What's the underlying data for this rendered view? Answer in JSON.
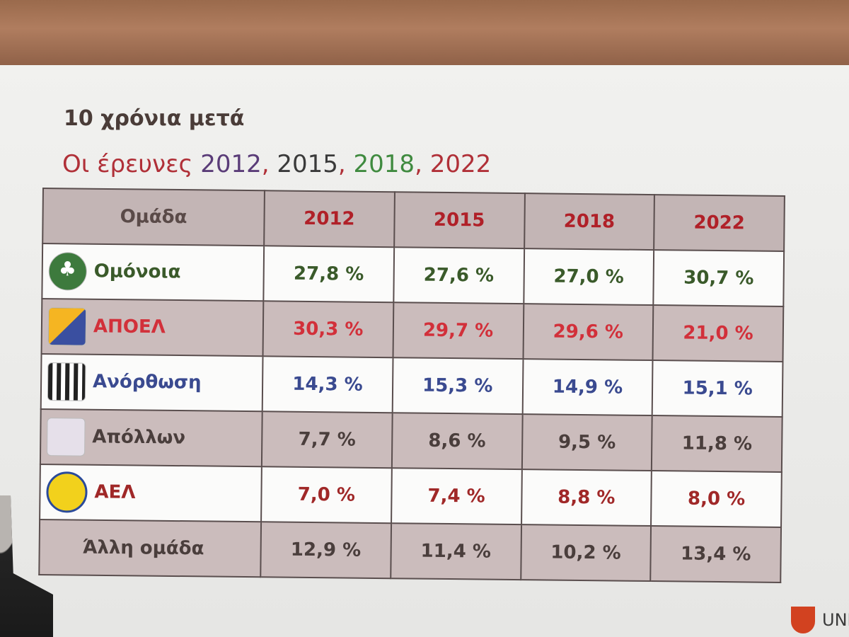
{
  "slide": {
    "title": "10 χρόνια μετά",
    "subtitle": {
      "prefix": "Οι έρευνες ",
      "y1": "2012",
      "sep1": ", ",
      "y2": "2015",
      "sep2": ", ",
      "y3": "2018",
      "sep3": ", ",
      "y4": "2022"
    },
    "table": {
      "headers": [
        "Ομάδα",
        "2012",
        "2015",
        "2018",
        "2022"
      ],
      "rows": [
        {
          "team": "Ομόνοια",
          "logo": "omonoia-logo",
          "color": "#3a5a2a",
          "values": [
            "27,8 %",
            "27,6 %",
            "27,0 %",
            "30,7 %"
          ]
        },
        {
          "team": "ΑΠΟΕΛ",
          "logo": "apoel-logo",
          "color": "#d2303a",
          "values": [
            "30,3 %",
            "29,7 %",
            "29,6 %",
            "21,0 %"
          ]
        },
        {
          "team": "Ανόρθωση",
          "logo": "anorthosi-logo",
          "color": "#3a4a90",
          "values": [
            "14,3 %",
            "15,3 %",
            "14,9 %",
            "15,1 %"
          ]
        },
        {
          "team": "Απόλλων",
          "logo": "apollon-logo",
          "color": "#4a3e3c",
          "values": [
            "7,7 %",
            "8,6 %",
            "9,5 %",
            "11,8 %"
          ]
        },
        {
          "team": "ΑΕΛ",
          "logo": "ael-logo",
          "color": "#a02828",
          "values": [
            "7,0 %",
            "7,4 %",
            "8,8 %",
            "8,0 %"
          ]
        },
        {
          "team": "Άλλη ομάδα",
          "logo": null,
          "color": "#4a3e3c",
          "values": [
            "12,9 %",
            "11,4 %",
            "10,2 %",
            "13,4 %"
          ]
        }
      ]
    },
    "brand_text": "UNI"
  }
}
